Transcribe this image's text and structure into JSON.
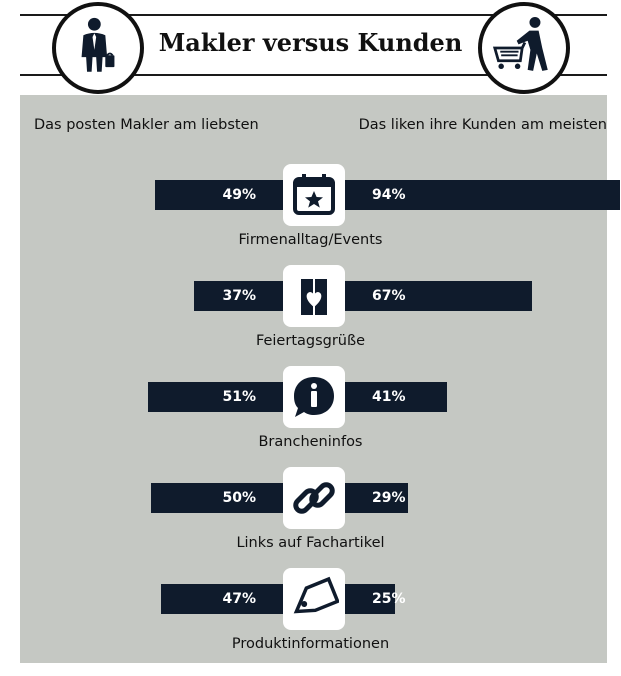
{
  "title": "Makler versus Kunden",
  "left_header": "Das posten Makler am liebsten",
  "right_header": "Das liken ihre Kunden am meisten",
  "icons": {
    "left_circle": "businessman-icon",
    "right_circle": "shopping-cart-person-icon",
    "rows": [
      "calendar-star-icon",
      "greeting-card-heart-icon",
      "info-speech-bubble-icon",
      "chain-link-icon",
      "price-tag-icon"
    ]
  },
  "colors": {
    "bar": "#0f1b2c",
    "panel": "#c5c8c3",
    "text": "#111111"
  },
  "chart_data": {
    "type": "bar",
    "categories": [
      "Firmenalltag/Events",
      "Feiertagsgrüße",
      "Brancheninfos",
      "Links auf Fachartikel",
      "Produktinformationen"
    ],
    "series": [
      {
        "name": "Das posten Makler am liebsten",
        "values": [
          49,
          37,
          51,
          50,
          47
        ],
        "labels": [
          "49%",
          "37%",
          "51%",
          "50%",
          "47%"
        ]
      },
      {
        "name": "Das liken ihre Kunden am meisten",
        "values": [
          94,
          67,
          41,
          29,
          25
        ],
        "labels": [
          "94%",
          "67%",
          "41%",
          "29%",
          "25%"
        ]
      }
    ],
    "xlabel": "",
    "ylabel": "",
    "unit": "%",
    "layout": "diverging",
    "grid": false
  }
}
